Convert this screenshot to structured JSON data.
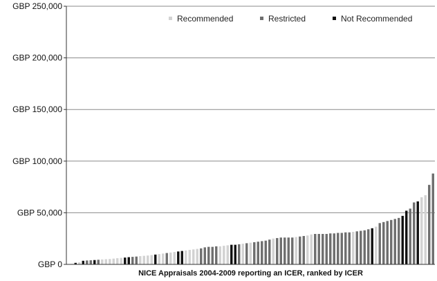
{
  "chart_data": {
    "type": "bar",
    "title": "",
    "xlabel": "NICE Appraisals 2004-2009  reporting an ICER, ranked by ICER",
    "ylabel": "",
    "ylim": [
      0,
      250000
    ],
    "yticks": [
      {
        "value": 0,
        "label": "GBP 0"
      },
      {
        "value": 50000,
        "label": "GBP 50,000"
      },
      {
        "value": 100000,
        "label": "GBP 100,000"
      },
      {
        "value": 150000,
        "label": "GBP 150,000"
      },
      {
        "value": 200000,
        "label": "GBP 200,000"
      },
      {
        "value": 250000,
        "label": "GBP 250,000"
      }
    ],
    "grid": true,
    "legend_position": "top-right",
    "categories_legend": [
      {
        "key": "rec",
        "label": "Recommended",
        "color": "#d2d2d2"
      },
      {
        "key": "res",
        "label": "Restricted",
        "color": "#6e6e6e"
      },
      {
        "key": "not",
        "label": "Not Recommended",
        "color": "#111111"
      }
    ],
    "bars": [
      {
        "v": 500,
        "c": "rec"
      },
      {
        "v": 1500,
        "c": "not"
      },
      {
        "v": 2000,
        "c": "rec"
      },
      {
        "v": 3500,
        "c": "not"
      },
      {
        "v": 3800,
        "c": "res"
      },
      {
        "v": 4000,
        "c": "res"
      },
      {
        "v": 4200,
        "c": "not"
      },
      {
        "v": 4500,
        "c": "res"
      },
      {
        "v": 4800,
        "c": "rec"
      },
      {
        "v": 5000,
        "c": "rec"
      },
      {
        "v": 5200,
        "c": "rec"
      },
      {
        "v": 5600,
        "c": "rec"
      },
      {
        "v": 6000,
        "c": "rec"
      },
      {
        "v": 6300,
        "c": "rec"
      },
      {
        "v": 6600,
        "c": "not"
      },
      {
        "v": 7000,
        "c": "not"
      },
      {
        "v": 7300,
        "c": "res"
      },
      {
        "v": 7600,
        "c": "res"
      },
      {
        "v": 8000,
        "c": "rec"
      },
      {
        "v": 8300,
        "c": "rec"
      },
      {
        "v": 8600,
        "c": "rec"
      },
      {
        "v": 9000,
        "c": "rec"
      },
      {
        "v": 9500,
        "c": "not"
      },
      {
        "v": 10000,
        "c": "rec"
      },
      {
        "v": 10500,
        "c": "rec"
      },
      {
        "v": 11000,
        "c": "res"
      },
      {
        "v": 11500,
        "c": "rec"
      },
      {
        "v": 12000,
        "c": "rec"
      },
      {
        "v": 12500,
        "c": "not"
      },
      {
        "v": 13000,
        "c": "not"
      },
      {
        "v": 13500,
        "c": "rec"
      },
      {
        "v": 14000,
        "c": "rec"
      },
      {
        "v": 14500,
        "c": "rec"
      },
      {
        "v": 15000,
        "c": "rec"
      },
      {
        "v": 15500,
        "c": "res"
      },
      {
        "v": 16500,
        "c": "res"
      },
      {
        "v": 17000,
        "c": "res"
      },
      {
        "v": 17000,
        "c": "res"
      },
      {
        "v": 17500,
        "c": "res"
      },
      {
        "v": 17500,
        "c": "rec"
      },
      {
        "v": 18000,
        "c": "rec"
      },
      {
        "v": 18500,
        "c": "rec"
      },
      {
        "v": 19000,
        "c": "not"
      },
      {
        "v": 19000,
        "c": "not"
      },
      {
        "v": 19500,
        "c": "res"
      },
      {
        "v": 20000,
        "c": "rec"
      },
      {
        "v": 20500,
        "c": "res"
      },
      {
        "v": 21000,
        "c": "rec"
      },
      {
        "v": 21500,
        "c": "res"
      },
      {
        "v": 22000,
        "c": "res"
      },
      {
        "v": 22500,
        "c": "res"
      },
      {
        "v": 23000,
        "c": "res"
      },
      {
        "v": 24000,
        "c": "res"
      },
      {
        "v": 25000,
        "c": "rec"
      },
      {
        "v": 25500,
        "c": "res"
      },
      {
        "v": 26000,
        "c": "res"
      },
      {
        "v": 26000,
        "c": "res"
      },
      {
        "v": 26000,
        "c": "res"
      },
      {
        "v": 26000,
        "c": "res"
      },
      {
        "v": 26500,
        "c": "rec"
      },
      {
        "v": 27000,
        "c": "res"
      },
      {
        "v": 27500,
        "c": "res"
      },
      {
        "v": 28000,
        "c": "rec"
      },
      {
        "v": 29000,
        "c": "rec"
      },
      {
        "v": 29500,
        "c": "res"
      },
      {
        "v": 29500,
        "c": "res"
      },
      {
        "v": 29500,
        "c": "res"
      },
      {
        "v": 29500,
        "c": "res"
      },
      {
        "v": 30000,
        "c": "res"
      },
      {
        "v": 30000,
        "c": "res"
      },
      {
        "v": 30500,
        "c": "res"
      },
      {
        "v": 30500,
        "c": "res"
      },
      {
        "v": 31000,
        "c": "res"
      },
      {
        "v": 31000,
        "c": "res"
      },
      {
        "v": 31500,
        "c": "rec"
      },
      {
        "v": 32000,
        "c": "res"
      },
      {
        "v": 32500,
        "c": "res"
      },
      {
        "v": 33000,
        "c": "res"
      },
      {
        "v": 34000,
        "c": "res"
      },
      {
        "v": 35000,
        "c": "not"
      },
      {
        "v": 36500,
        "c": "rec"
      },
      {
        "v": 40000,
        "c": "res"
      },
      {
        "v": 41000,
        "c": "res"
      },
      {
        "v": 42000,
        "c": "res"
      },
      {
        "v": 43000,
        "c": "res"
      },
      {
        "v": 44000,
        "c": "res"
      },
      {
        "v": 45000,
        "c": "res"
      },
      {
        "v": 47000,
        "c": "not"
      },
      {
        "v": 52000,
        "c": "not"
      },
      {
        "v": 54000,
        "c": "res"
      },
      {
        "v": 60000,
        "c": "res"
      },
      {
        "v": 61000,
        "c": "not"
      },
      {
        "v": 65000,
        "c": "rec"
      },
      {
        "v": 67000,
        "c": "rec"
      },
      {
        "v": 77000,
        "c": "res"
      },
      {
        "v": 88000,
        "c": "res"
      }
    ]
  }
}
